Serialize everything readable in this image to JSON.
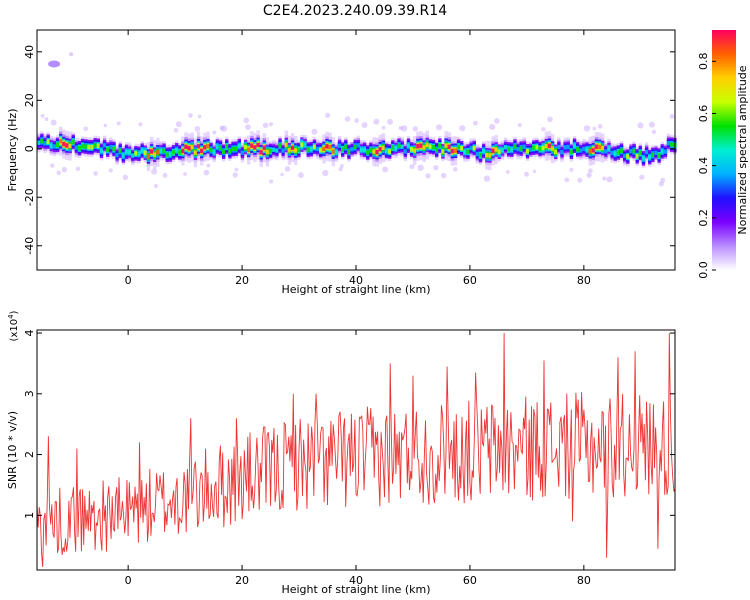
{
  "title": "C2E4.2023.240.09.39.R14",
  "chart_data": [
    {
      "type": "heatmap",
      "xlabel": "Height of straight line (km)",
      "ylabel": "Frequency (Hz)",
      "xlim": [
        -16,
        96
      ],
      "ylim": [
        -50,
        49
      ],
      "xticks": [
        0,
        20,
        40,
        60,
        80
      ],
      "yticks": [
        -40,
        -20,
        0,
        20,
        40
      ],
      "ridge": {
        "x": [
          -16,
          -12,
          -8,
          -4,
          0,
          4,
          8,
          12,
          16,
          20,
          24,
          28,
          32,
          36,
          40,
          44,
          48,
          52,
          56,
          60,
          64,
          68,
          72,
          76,
          80,
          84,
          88,
          92,
          95
        ],
        "y": [
          2,
          2,
          1,
          0,
          -2,
          -2,
          -1,
          0,
          0,
          0,
          0,
          1,
          0,
          0,
          0,
          0,
          0,
          0,
          0,
          -1,
          -2,
          1,
          0,
          0,
          0,
          0,
          -2,
          -3,
          1
        ]
      },
      "peaks_x": [
        -11,
        4,
        10,
        13,
        22,
        24,
        29,
        35,
        44,
        51,
        57,
        64,
        74,
        82
      ],
      "outlier_spot": {
        "x": -13,
        "y": 35
      },
      "colorbar": {
        "label": "Normalized spectral amplitude",
        "range": [
          0,
          0.92
        ],
        "ticks": [
          "0.0",
          "0.2",
          "0.4",
          "0.6",
          "0.8"
        ],
        "colors": [
          "#ffffff",
          "#b98cff",
          "#7a00ff",
          "#2010ff",
          "#00b0ff",
          "#00f0d0",
          "#00e000",
          "#c8ff00",
          "#ffd000",
          "#ff6000",
          "#ff0060"
        ]
      }
    },
    {
      "type": "line",
      "xlabel": "Height of straight line (km)",
      "ylabel": "SNR (10 * v/v)",
      "y_multiplier": "(x10",
      "y_multiplier_exp": "4",
      "y_multiplier_close": ")",
      "xlim": [
        -16,
        96
      ],
      "ylim": [
        0.1,
        4.05
      ],
      "xticks": [
        0,
        20,
        40,
        60,
        80
      ],
      "yticks": [
        1,
        2,
        3,
        4
      ],
      "color": "#ee3333",
      "trend": {
        "x": [
          -16,
          0,
          10,
          20,
          30,
          40,
          50,
          60,
          70,
          80,
          90,
          96
        ],
        "y": [
          0.85,
          1.05,
          1.3,
          1.6,
          1.85,
          1.95,
          2.0,
          2.05,
          2.1,
          2.15,
          2.15,
          2.1
        ]
      },
      "spikes": [
        {
          "x": -14,
          "y": 2.3
        },
        {
          "x": -9,
          "y": 2.1
        },
        {
          "x": 2,
          "y": 2.2
        },
        {
          "x": 3,
          "y": 1.0
        },
        {
          "x": 11,
          "y": 2.6
        },
        {
          "x": 19,
          "y": 2.6
        },
        {
          "x": 29,
          "y": 3.0
        },
        {
          "x": 33,
          "y": 3.0
        },
        {
          "x": 46,
          "y": 3.5
        },
        {
          "x": 50,
          "y": 3.3
        },
        {
          "x": 56,
          "y": 3.45
        },
        {
          "x": 61,
          "y": 3.35
        },
        {
          "x": 66,
          "y": 4.0
        },
        {
          "x": 73,
          "y": 3.55
        },
        {
          "x": 86,
          "y": 3.6
        },
        {
          "x": 89,
          "y": 3.7
        },
        {
          "x": 95,
          "y": 4.0
        },
        {
          "x": 78,
          "y": 0.9
        },
        {
          "x": 84,
          "y": 0.3
        },
        {
          "x": 93,
          "y": 0.45
        },
        {
          "x": -15,
          "y": 0.15
        }
      ]
    }
  ]
}
